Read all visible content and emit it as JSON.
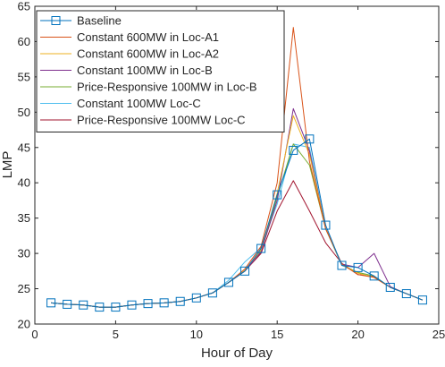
{
  "chart_data": {
    "type": "line",
    "title": "",
    "xlabel": "Hour of Day",
    "ylabel": "LMP",
    "xlim": [
      0,
      25
    ],
    "ylim": [
      20,
      65
    ],
    "xticks": [
      0,
      5,
      10,
      15,
      20,
      25
    ],
    "yticks": [
      20,
      25,
      30,
      35,
      40,
      45,
      50,
      55,
      60,
      65
    ],
    "grid": false,
    "legend_placement": "top-left",
    "x": [
      1,
      2,
      3,
      4,
      5,
      6,
      7,
      8,
      9,
      10,
      11,
      12,
      13,
      14,
      15,
      16,
      17,
      18,
      19,
      20,
      21,
      22,
      23,
      24
    ],
    "series": [
      {
        "name": "Baseline",
        "color": "#0072bd",
        "marker": "square",
        "values": [
          23.0,
          22.8,
          22.7,
          22.4,
          22.4,
          22.7,
          22.9,
          23.0,
          23.2,
          23.7,
          24.4,
          25.9,
          27.5,
          30.7,
          38.3,
          44.6,
          46.2,
          34.0,
          28.3,
          28.0,
          26.8,
          25.2,
          24.3,
          23.4
        ]
      },
      {
        "name": "Constant 600MW in Loc-A1",
        "color": "#d95319",
        "marker": "none",
        "values": [
          23.0,
          22.8,
          22.7,
          22.4,
          22.4,
          22.7,
          22.9,
          23.0,
          23.2,
          23.7,
          24.4,
          25.9,
          27.8,
          31.0,
          40.0,
          62.0,
          43.0,
          33.5,
          28.5,
          27.0,
          26.6,
          25.2,
          24.3,
          23.4
        ]
      },
      {
        "name": "Constant 600MW in Loc-A2",
        "color": "#edb120",
        "marker": "none",
        "values": [
          23.0,
          22.8,
          22.7,
          22.4,
          22.4,
          22.7,
          22.9,
          23.0,
          23.2,
          23.7,
          24.4,
          25.9,
          27.6,
          30.5,
          38.5,
          49.5,
          44.0,
          33.5,
          28.4,
          27.2,
          26.6,
          25.2,
          24.3,
          23.4
        ]
      },
      {
        "name": "Constant 100MW in Loc-B",
        "color": "#7e2f8e",
        "marker": "none",
        "values": [
          23.0,
          22.8,
          22.7,
          22.4,
          22.4,
          22.7,
          22.9,
          23.0,
          23.2,
          23.7,
          24.4,
          25.9,
          27.5,
          30.2,
          37.5,
          50.5,
          44.5,
          33.5,
          28.5,
          28.0,
          30.0,
          25.3,
          24.3,
          23.4
        ]
      },
      {
        "name": "Price-Responsive 100MW in Loc-B",
        "color": "#77ac30",
        "marker": "none",
        "values": [
          23.0,
          22.8,
          22.7,
          22.4,
          22.4,
          22.7,
          22.9,
          23.0,
          23.2,
          23.7,
          24.4,
          25.9,
          27.5,
          30.3,
          38.0,
          45.5,
          42.5,
          33.5,
          28.4,
          27.3,
          26.8,
          25.2,
          24.3,
          23.4
        ]
      },
      {
        "name": "Constant 100MW Loc-C",
        "color": "#4dbeee",
        "marker": "none",
        "values": [
          23.0,
          22.8,
          22.7,
          22.4,
          22.4,
          22.7,
          22.9,
          23.0,
          23.2,
          23.7,
          24.4,
          26.2,
          28.8,
          30.8,
          37.0,
          45.5,
          45.0,
          33.5,
          28.3,
          27.3,
          26.8,
          25.2,
          24.3,
          23.4
        ]
      },
      {
        "name": "Price-Responsive 100MW Loc-C",
        "color": "#a2142f",
        "marker": "none",
        "values": [
          23.0,
          22.8,
          22.7,
          22.4,
          22.4,
          22.7,
          22.9,
          23.0,
          23.2,
          23.7,
          24.4,
          25.9,
          27.5,
          30.0,
          36.0,
          40.3,
          36.0,
          31.5,
          28.6,
          27.0,
          26.7,
          25.2,
          24.3,
          23.4
        ]
      }
    ]
  }
}
